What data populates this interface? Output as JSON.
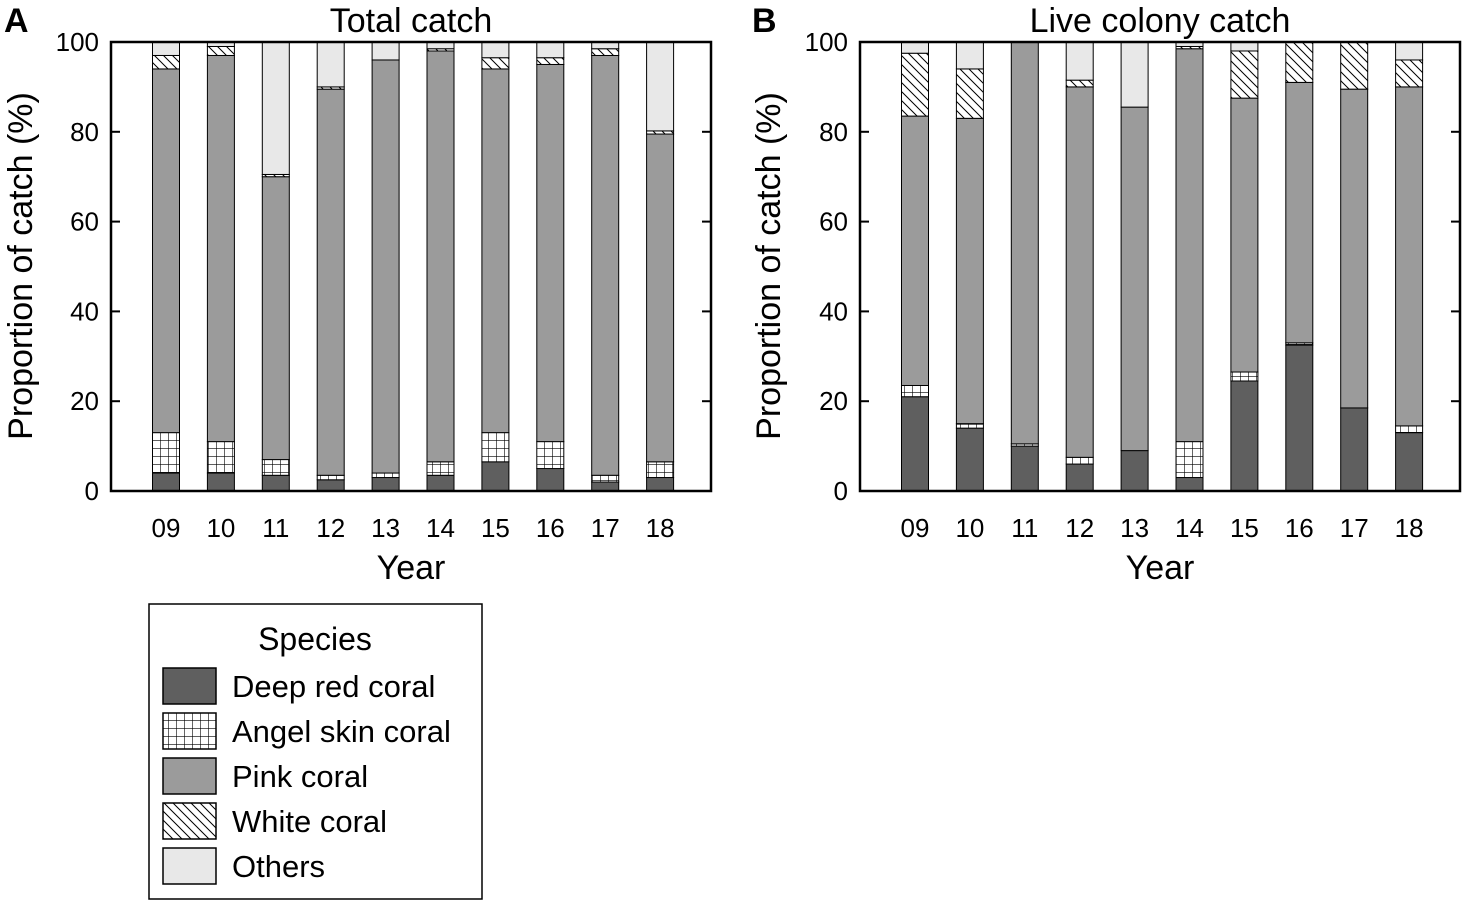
{
  "colors": {
    "deep_red": "#5f5f5f",
    "angel_skin_bg": "#ffffff",
    "pink": "#9b9b9b",
    "white_coral_bg": "#ffffff",
    "others": "#e8e8e8",
    "stroke": "#000000"
  },
  "legend": {
    "title": "Species",
    "items": [
      {
        "key": "deep_red",
        "label": "Deep red coral",
        "pattern": "solid-dark"
      },
      {
        "key": "angel_skin",
        "label": "Angel skin coral",
        "pattern": "grid"
      },
      {
        "key": "pink",
        "label": "Pink coral",
        "pattern": "solid-mid"
      },
      {
        "key": "white",
        "label": "White coral",
        "pattern": "hatch"
      },
      {
        "key": "others",
        "label": "Others",
        "pattern": "solid-light"
      }
    ]
  },
  "chart_data": [
    {
      "type": "bar",
      "stacked": true,
      "panel": "A",
      "title": "Total catch",
      "xlabel": "Year",
      "ylabel": "Proportion of catch (%)",
      "ylim": [
        0,
        100
      ],
      "yticks": [
        0,
        20,
        40,
        60,
        80,
        100
      ],
      "categories": [
        "09",
        "10",
        "11",
        "12",
        "13",
        "14",
        "15",
        "16",
        "17",
        "18"
      ],
      "series": [
        {
          "name": "Deep red coral",
          "key": "deep_red",
          "values": [
            4,
            4,
            3.5,
            2.5,
            3,
            3.5,
            6.5,
            5,
            2,
            3
          ]
        },
        {
          "name": "Angel skin coral",
          "key": "angel_skin",
          "values": [
            9,
            7,
            3.5,
            1,
            1,
            3,
            6.5,
            6,
            1.5,
            3.5
          ]
        },
        {
          "name": "Pink coral",
          "key": "pink",
          "values": [
            81,
            86,
            63,
            86,
            92,
            91.5,
            81,
            84,
            93.5,
            73
          ]
        },
        {
          "name": "White coral",
          "key": "white",
          "values": [
            3,
            2,
            0.5,
            0.5,
            0,
            0.5,
            2.5,
            1.5,
            1.5,
            0.7
          ]
        },
        {
          "name": "Others",
          "key": "others",
          "values": [
            3,
            1,
            29.5,
            10,
            4,
            1.5,
            3.5,
            3.5,
            1.5,
            19.8
          ]
        }
      ]
    },
    {
      "type": "bar",
      "stacked": true,
      "panel": "B",
      "title": "Live colony catch",
      "xlabel": "Year",
      "ylabel": "Proportion of catch (%)",
      "ylim": [
        0,
        100
      ],
      "yticks": [
        0,
        20,
        40,
        60,
        80,
        100
      ],
      "categories": [
        "09",
        "10",
        "11",
        "12",
        "13",
        "14",
        "15",
        "16",
        "17",
        "18"
      ],
      "series": [
        {
          "name": "Deep red coral",
          "key": "deep_red",
          "values": [
            21,
            14,
            10,
            6,
            9,
            3,
            24.5,
            32.5,
            18.5,
            13
          ]
        },
        {
          "name": "Angel skin coral",
          "key": "angel_skin",
          "values": [
            2.5,
            1,
            0.5,
            1.5,
            0,
            8,
            2,
            0.5,
            0,
            1.5
          ]
        },
        {
          "name": "Pink coral",
          "key": "pink",
          "values": [
            60,
            68,
            89.5,
            82.5,
            76.5,
            87.5,
            61,
            58,
            71,
            75.5
          ]
        },
        {
          "name": "White coral",
          "key": "white",
          "values": [
            14,
            11,
            0,
            1.5,
            0,
            0.5,
            10.5,
            9,
            10.5,
            6
          ]
        },
        {
          "name": "Others",
          "key": "others",
          "values": [
            2.5,
            6,
            0,
            8.5,
            14.5,
            1,
            2,
            0,
            0,
            4
          ]
        }
      ]
    }
  ]
}
